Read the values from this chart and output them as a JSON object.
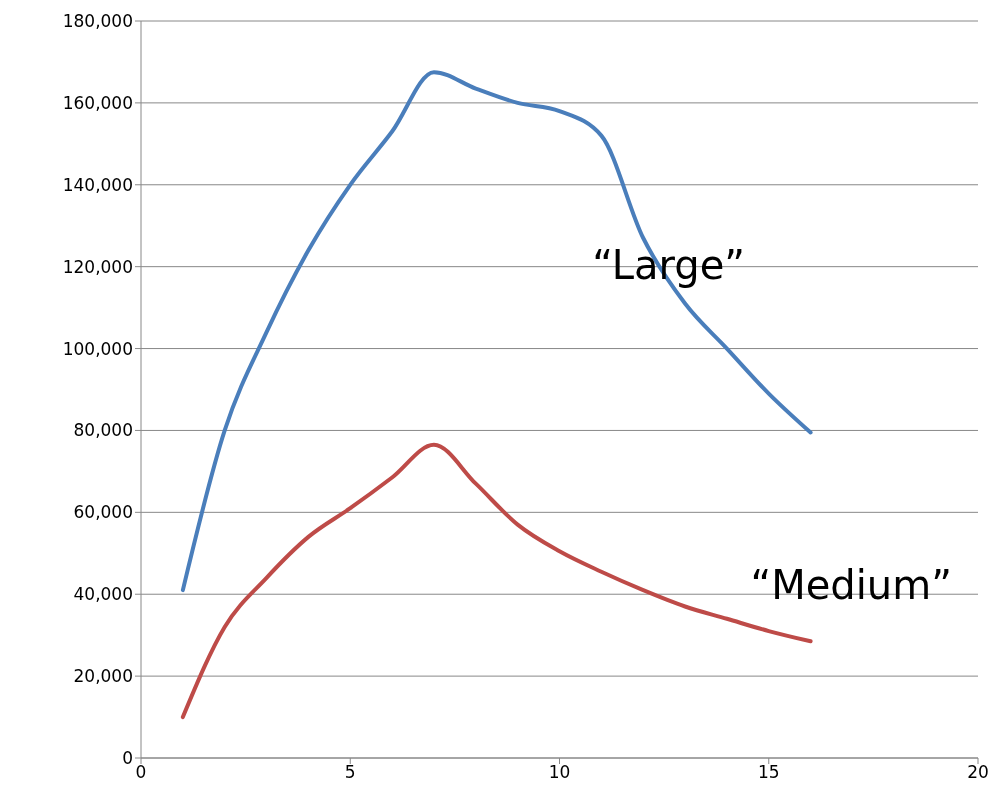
{
  "chart_data": {
    "type": "line",
    "x": [
      1,
      2,
      3,
      4,
      5,
      6,
      7,
      8,
      9,
      10,
      11,
      12,
      13,
      14,
      15,
      16
    ],
    "series": [
      {
        "name": "“Large”",
        "color": "#4a7ebb",
        "values": [
          41000,
          80000,
          104000,
          124000,
          140000,
          153000,
          167500,
          163500,
          160000,
          158000,
          152000,
          127000,
          111000,
          100000,
          89000,
          79500
        ]
      },
      {
        "name": "“Medium”",
        "color": "#be4b48",
        "values": [
          10000,
          32000,
          44000,
          54000,
          61000,
          68500,
          76500,
          67000,
          57000,
          50500,
          45500,
          41000,
          37000,
          34000,
          31000,
          28500
        ]
      }
    ],
    "xlim": [
      0,
      20
    ],
    "xticks": [
      0,
      5,
      10,
      15,
      20
    ],
    "ylim": [
      0,
      180000
    ],
    "yticks": [
      0,
      {
        "value": 20000,
        "label": "20,000"
      },
      {
        "value": 40000,
        "label": "40,000"
      },
      {
        "value": 60000,
        "label": "60,000"
      },
      {
        "value": 80000,
        "label": "80,000"
      },
      {
        "value": 100000,
        "label": "100,000"
      },
      {
        "value": 120000,
        "label": "120,000"
      },
      {
        "value": 140000,
        "label": "140,000"
      },
      {
        "value": 160000,
        "label": "160,000"
      },
      {
        "value": 180000,
        "label": "180,000"
      }
    ],
    "grid": "y",
    "marker": "none",
    "line_style": "solid"
  }
}
